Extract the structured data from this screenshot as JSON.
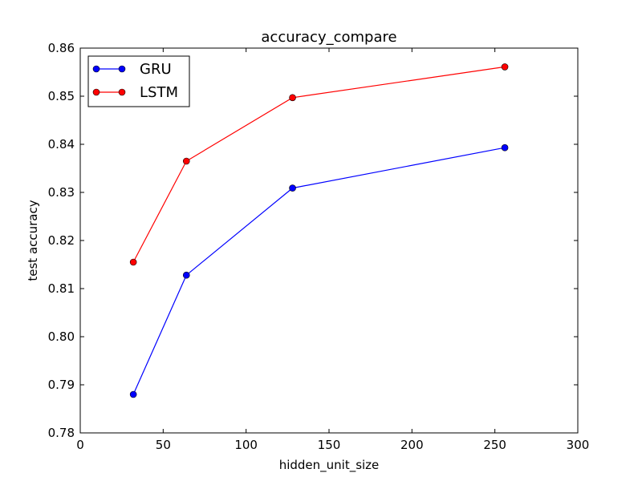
{
  "chart_data": {
    "type": "line",
    "title": "accuracy_compare",
    "xlabel": "hidden_unit_size",
    "ylabel": "test accuracy",
    "xlim": [
      0,
      300
    ],
    "ylim": [
      0.78,
      0.86
    ],
    "xticks": [
      0,
      50,
      100,
      150,
      200,
      250,
      300
    ],
    "xtick_labels": [
      "0",
      "50",
      "100",
      "150",
      "200",
      "250",
      "300"
    ],
    "yticks": [
      0.78,
      0.79,
      0.8,
      0.81,
      0.82,
      0.83,
      0.84,
      0.85,
      0.86
    ],
    "ytick_labels": [
      "0.78",
      "0.79",
      "0.80",
      "0.81",
      "0.82",
      "0.83",
      "0.84",
      "0.85",
      "0.86"
    ],
    "grid": false,
    "legend_position": "top-left",
    "x": [
      32,
      64,
      128,
      256
    ],
    "series": [
      {
        "name": "GRU",
        "color": "#0000ff",
        "marker": "circle",
        "values": [
          0.788,
          0.8128,
          0.8309,
          0.8393
        ]
      },
      {
        "name": "LSTM",
        "color": "#ff0000",
        "marker": "circle",
        "values": [
          0.8155,
          0.8365,
          0.8497,
          0.8561
        ]
      }
    ]
  }
}
